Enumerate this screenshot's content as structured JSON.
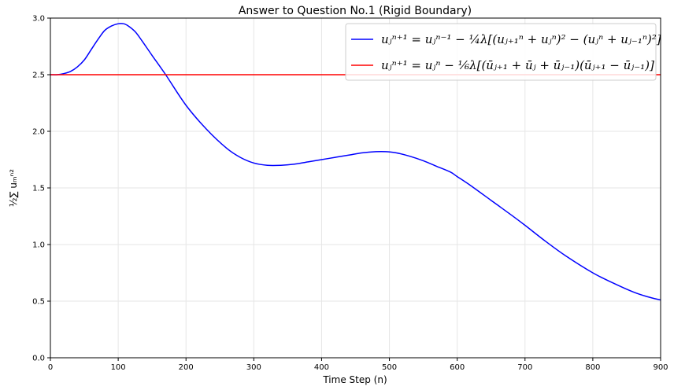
{
  "chart_data": {
    "type": "line",
    "title": "Answer to Question No.1 (Rigid Boundary)",
    "xlabel": "Time Step (n)",
    "ylabel": "½∑ uₘⁿ²",
    "xlim": [
      0,
      900
    ],
    "ylim": [
      0.0,
      3.0
    ],
    "xticks": [
      0,
      100,
      200,
      300,
      400,
      500,
      600,
      700,
      800,
      900
    ],
    "yticks": [
      0.0,
      0.5,
      1.0,
      1.5,
      2.0,
      2.5,
      3.0
    ],
    "xtick_labels": [
      "0",
      "100",
      "200",
      "300",
      "400",
      "500",
      "600",
      "700",
      "800",
      "900"
    ],
    "ytick_labels": [
      "0.0",
      "0.5",
      "1.0",
      "1.5",
      "2.0",
      "2.5",
      "3.0"
    ],
    "grid": true,
    "legend_position": "top-right",
    "series": [
      {
        "name": "uⱼⁿ⁺¹ = uⱼⁿ⁻¹ − ¼λ[(uⱼ₊₁ⁿ + uⱼⁿ)² − (uⱼⁿ + uⱼ₋₁ⁿ)²]",
        "color": "#0000ff",
        "x": [
          0,
          10,
          20,
          30,
          40,
          50,
          60,
          70,
          80,
          90,
          100,
          108,
          115,
          125,
          135,
          150,
          170,
          200,
          230,
          260,
          280,
          300,
          320,
          340,
          360,
          380,
          400,
          420,
          440,
          460,
          480,
          495,
          510,
          530,
          550,
          570,
          590,
          600,
          620,
          650,
          680,
          700,
          730,
          760,
          800,
          830,
          860,
          880,
          900
        ],
        "y": [
          2.5,
          2.5,
          2.51,
          2.53,
          2.57,
          2.63,
          2.72,
          2.81,
          2.89,
          2.93,
          2.95,
          2.95,
          2.93,
          2.88,
          2.8,
          2.67,
          2.5,
          2.23,
          2.02,
          1.85,
          1.77,
          1.72,
          1.7,
          1.7,
          1.71,
          1.73,
          1.75,
          1.77,
          1.79,
          1.81,
          1.82,
          1.82,
          1.81,
          1.78,
          1.74,
          1.69,
          1.64,
          1.6,
          1.52,
          1.39,
          1.26,
          1.17,
          1.03,
          0.9,
          0.75,
          0.66,
          0.58,
          0.54,
          0.51
        ]
      },
      {
        "name": "uⱼⁿ⁺¹ = uⱼⁿ − ⅙λ[(ūⱼ₊₁ + ūⱼ + ūⱼ₋₁)(ūⱼ₊₁ − ūⱼ₋₁)]",
        "color": "#ff0000",
        "x": [
          0,
          900
        ],
        "y": [
          2.5,
          2.5
        ]
      }
    ]
  }
}
